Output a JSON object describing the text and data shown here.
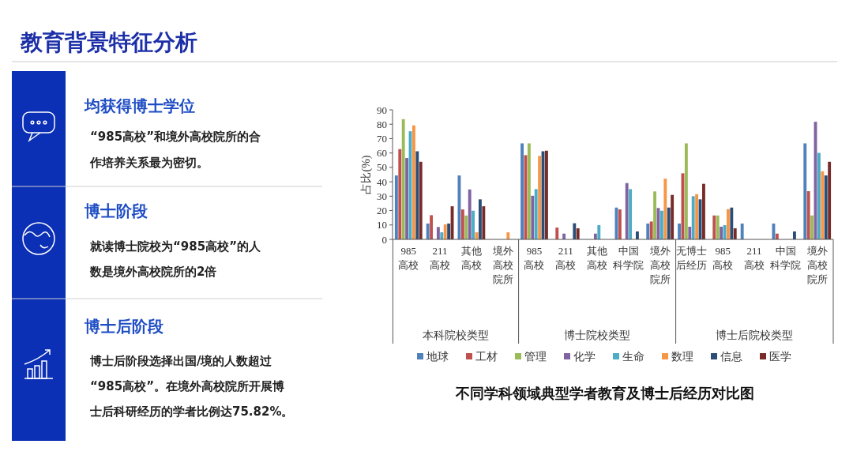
{
  "chart_data": {
    "type": "bar",
    "title": "教育背景特征分析",
    "subtitle": "不同学科领域典型学者教育及博士后经历对比图",
    "ylabel": "占比(%)",
    "categories": [
      "985高校",
      "211高校",
      "其他高校",
      "境外高校院所",
      "985高校",
      "211高校",
      "其他高校",
      "中国科学院",
      "境外高校院所",
      "无博士后经历",
      "985高校",
      "211高校",
      "中国科学院",
      "境外高校院所"
    ],
    "series": [
      {
        "name": "地球",
        "color": "#4f81bd",
        "values": [
          44.4,
          11,
          44.4,
          0,
          66.7,
          0,
          0,
          22.1,
          11,
          11,
          0,
          11,
          11,
          66.7
        ]
      },
      {
        "name": "工材",
        "color": "#c0504d",
        "values": [
          62.7,
          16.8,
          20.8,
          0,
          58.5,
          8.2,
          0,
          20.8,
          12.4,
          45.9,
          16.6,
          0,
          4,
          33.5
        ]
      },
      {
        "name": "管理",
        "color": "#9bbb59",
        "values": [
          83.5,
          0,
          16.6,
          0,
          66.7,
          0,
          0,
          0,
          33.3,
          66.7,
          16.6,
          0,
          0,
          16.6
        ]
      },
      {
        "name": "化学",
        "color": "#8064a2",
        "values": [
          56.5,
          8.6,
          34.7,
          0,
          30.3,
          4,
          4,
          39.1,
          21.8,
          8.8,
          8.8,
          0,
          0,
          81.7
        ]
      },
      {
        "name": "生命",
        "color": "#4bacc6",
        "values": [
          75.1,
          4.9,
          19.9,
          0,
          34.9,
          0,
          9.9,
          34.9,
          19.9,
          30,
          9.9,
          0,
          0,
          60.1
        ]
      },
      {
        "name": "数理",
        "color": "#f79646",
        "values": [
          79.2,
          10.4,
          4.9,
          4.9,
          58,
          0,
          0,
          0,
          42.2,
          31.4,
          21,
          0,
          0,
          47.3
        ]
      },
      {
        "name": "信息",
        "color": "#2c4d75",
        "values": [
          61.2,
          11,
          27.8,
          0,
          61.2,
          11.2,
          0,
          5.5,
          22.1,
          27.8,
          22.1,
          0,
          5.5,
          44.4
        ]
      },
      {
        "name": "医学",
        "color": "#772c2a",
        "values": [
          53.9,
          23,
          23,
          0,
          61.6,
          7.7,
          0,
          0,
          30.9,
          38.6,
          7.7,
          0,
          0,
          53.9
        ]
      }
    ],
    "ylim": [
      0,
      90
    ],
    "yticks": [
      0,
      10,
      20,
      30,
      40,
      50,
      60,
      70,
      80,
      90
    ],
    "grid": false,
    "legend": "bottom",
    "annotations": [
      "本科院校类型",
      "博士院校类型",
      "博士后院校类型",
      "均获得博士学位",
      "“985高校”和境外高校院所的合作培养关系最为密切。",
      "博士阶段",
      "就读博士院校为“985高校”的人数是境外高校院所的2倍",
      "博士后阶段",
      "博士后阶段选择出国/境的人数超过“985高校”。在境外高校院所开展博士后科研经历的学者比例达75.82%。"
    ]
  }
}
